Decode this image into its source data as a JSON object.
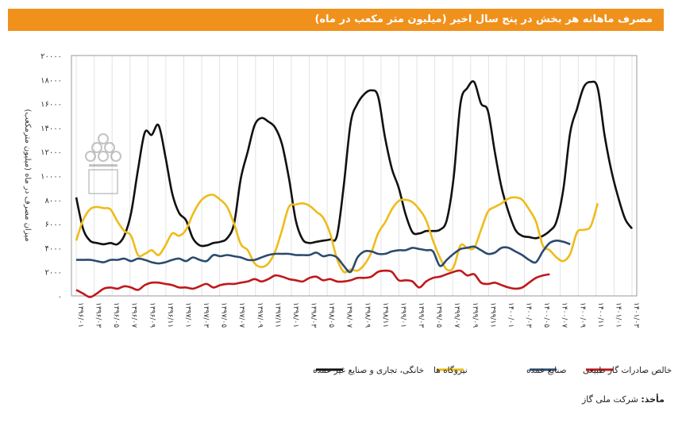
{
  "header": {
    "title": "مصرف ماهانه هر بخش در پنج سال اخیر (میلیون متر مکعب در ماه)"
  },
  "source": {
    "label": "مأخذ:",
    "text": "شرکت ملی گاز"
  },
  "chart_data": {
    "type": "line",
    "title": "مصرف ماهانه هر بخش در پنج سال اخیر (میلیون متر مکعب در ماه)",
    "ylabel": "میزان مصرف در ماه (میلیون مترمکعب)",
    "xlabel": "",
    "ylim": [
      0,
      20000
    ],
    "yticks": [
      "۰",
      "۲۰۰۰",
      "۴۰۰۰",
      "۶۰۰۰",
      "۸۰۰۰",
      "۱۰۰۰۰",
      "۱۲۰۰۰",
      "۱۴۰۰۰",
      "۱۶۰۰۰",
      "۱۸۰۰۰",
      "۲۰۰۰۰"
    ],
    "yvalues": [
      0,
      2000,
      4000,
      6000,
      8000,
      10000,
      12000,
      14000,
      16000,
      18000,
      20000
    ],
    "xtick_labels": [
      "۱۳۹۶/۰۱",
      "۱۳۹۶/۰۳",
      "۱۳۹۶/۰۵",
      "۱۳۹۶/۰۷",
      "۱۳۹۶/۰۹",
      "۱۳۹۶/۱۱",
      "۱۳۹۷/۰۱",
      "۱۳۹۷/۰۳",
      "۱۳۹۷/۰۵",
      "۱۳۹۷/۰۷",
      "۱۳۹۷/۰۹",
      "۱۳۹۷/۱۱",
      "۱۳۹۸/۰۱",
      "۱۳۹۸/۰۳",
      "۱۳۹۸/۰۵",
      "۱۳۹۸/۰۷",
      "۱۳۹۸/۰۹",
      "۱۳۹۸/۱۱",
      "۱۳۹۹/۰۱",
      "۱۳۹۹/۰۳",
      "۱۳۹۹/۰۵",
      "۱۳۹۹/۰۷",
      "۱۳۹۹/۰۹",
      "۱۳۹۹/۱۱",
      "۱۴۰۰/۰۱",
      "۱۴۰۰/۰۳",
      "۱۴۰۰/۰۵",
      "۱۴۰۰/۰۷",
      "۱۴۰۰/۰۹",
      "۱۴۰۰/۱۱",
      "۱۴۰۱/۰۱",
      "۱۴۰۱/۰۳"
    ],
    "grid": "vertical",
    "legend_position": "bottom",
    "series": [
      {
        "name": "خانگی، تجاری و صنایع غیر عمده",
        "color": "#111111",
        "values": [
          8200,
          5600,
          4600,
          4400,
          4300,
          4400,
          4300,
          5000,
          6900,
          10500,
          13600,
          13400,
          14200,
          11600,
          8500,
          6900,
          6300,
          4800,
          4200,
          4200,
          4400,
          4500,
          4800,
          6000,
          9800,
          12000,
          14200,
          14800,
          14500,
          14000,
          12600,
          9800,
          6300,
          4700,
          4400,
          4500,
          4600,
          4700,
          5000,
          9200,
          14400,
          16000,
          16800,
          17100,
          16600,
          13200,
          10600,
          9000,
          6800,
          5300,
          5200,
          5400,
          5400,
          5500,
          6300,
          9800,
          16000,
          17300,
          17800,
          16000,
          15400,
          12000,
          9000,
          7000,
          5500,
          5000,
          4900,
          4800,
          5000,
          5400,
          6200,
          8900,
          13600,
          15600,
          17400,
          17800,
          17300,
          13400,
          10400,
          8200,
          6400,
          5600
        ]
      },
      {
        "name": "نیروگاه ها",
        "color": "#eebc1a",
        "values": [
          4600,
          6300,
          7200,
          7400,
          7300,
          7200,
          6200,
          5400,
          5000,
          3400,
          3500,
          3800,
          3400,
          4200,
          5200,
          5000,
          5500,
          6800,
          7800,
          8300,
          8400,
          8000,
          7400,
          6000,
          4300,
          3800,
          2700,
          2400,
          2700,
          3700,
          5500,
          7400,
          7600,
          7700,
          7500,
          7000,
          6500,
          5200,
          3100,
          2000,
          2200,
          2100,
          2600,
          3600,
          5200,
          6100,
          7200,
          7900,
          8000,
          7800,
          7200,
          6300,
          4600,
          3200,
          2200,
          2400,
          4200,
          4000,
          4000,
          5500,
          7000,
          7400,
          7700,
          8100,
          8200,
          8000,
          7200,
          6200,
          4200,
          3800,
          3200,
          2900,
          3500,
          5300,
          5500,
          5800,
          7700
        ]
      },
      {
        "name": "صنایع عمده",
        "color": "#2c4a6e",
        "values": [
          3000,
          3000,
          3000,
          2900,
          2800,
          3000,
          3000,
          3100,
          2900,
          3100,
          3000,
          2800,
          2700,
          2800,
          3000,
          3100,
          2900,
          3200,
          3000,
          2900,
          3400,
          3300,
          3400,
          3300,
          3200,
          3000,
          3000,
          3200,
          3400,
          3500,
          3500,
          3500,
          3400,
          3400,
          3400,
          3600,
          3300,
          3400,
          3200,
          2500,
          2000,
          3200,
          3700,
          3700,
          3500,
          3500,
          3700,
          3800,
          3800,
          4000,
          3900,
          3800,
          3700,
          2500,
          3000,
          3500,
          3900,
          4000,
          4100,
          3800,
          3500,
          3600,
          4000,
          4000,
          3700,
          3400,
          3000,
          2800,
          3700,
          4400,
          4600,
          4500,
          4300
        ]
      },
      {
        "name": "خالص صادرات گاز طبیعی",
        "color": "#c0181b",
        "values": [
          500,
          200,
          -100,
          200,
          600,
          700,
          600,
          800,
          700,
          500,
          900,
          1100,
          1100,
          1000,
          900,
          700,
          700,
          600,
          800,
          1000,
          700,
          900,
          1000,
          1000,
          1100,
          1200,
          1400,
          1200,
          1400,
          1700,
          1600,
          1400,
          1300,
          1200,
          1500,
          1600,
          1300,
          1400,
          1200,
          1200,
          1300,
          1500,
          1500,
          1600,
          2000,
          2100,
          2000,
          1300,
          1300,
          1200,
          700,
          1200,
          1500,
          1600,
          1800,
          2000,
          2100,
          1700,
          1800,
          1100,
          1000,
          1100,
          900,
          700,
          600,
          700,
          1100,
          1500,
          1700,
          1800
        ]
      }
    ]
  }
}
